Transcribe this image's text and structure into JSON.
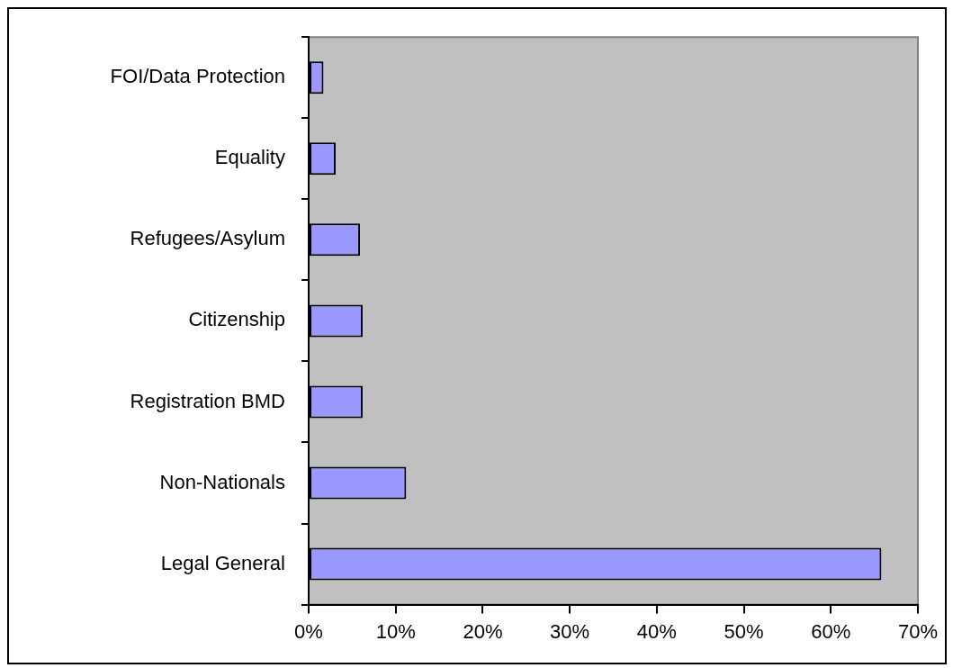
{
  "chart_data": {
    "type": "bar",
    "orientation": "horizontal",
    "categories": [
      "FOI/Data Protection",
      "Equality",
      "Refugees/Asylum",
      "Citizenship",
      "Registration BMD",
      "Non-Nationals",
      "Legal General"
    ],
    "values": [
      1.7,
      3.1,
      5.9,
      6.2,
      6.2,
      11.2,
      65.8
    ],
    "color": "#9999ff",
    "xlim": [
      0,
      70
    ],
    "xticks": [
      {
        "value": 0,
        "label": "0%"
      },
      {
        "value": 10,
        "label": "10%"
      },
      {
        "value": 20,
        "label": "20%"
      },
      {
        "value": 30,
        "label": "30%"
      },
      {
        "value": 40,
        "label": "40%"
      },
      {
        "value": 50,
        "label": "50%"
      },
      {
        "value": 60,
        "label": "60%"
      },
      {
        "value": 70,
        "label": "70%"
      }
    ]
  }
}
